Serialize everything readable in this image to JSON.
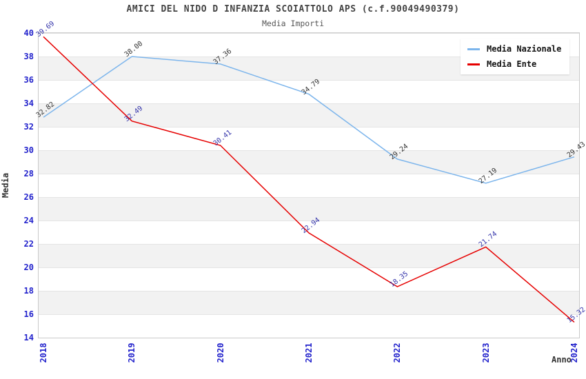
{
  "header": {
    "title": "AMICI DEL NIDO D INFANZIA SCOIATTOLO APS (c.f.90049490379)",
    "subtitle": "Media Importi"
  },
  "chart_data": {
    "type": "line",
    "x": [
      2018,
      2019,
      2020,
      2021,
      2022,
      2023,
      2024
    ],
    "series": [
      {
        "name": "Media Nazionale",
        "color": "#7cb5ec",
        "label_color": "#333333",
        "values": [
          32.82,
          38.0,
          37.36,
          34.79,
          29.24,
          27.19,
          29.43
        ]
      },
      {
        "name": "Media Ente",
        "color": "#e60000",
        "label_color": "#3333aa",
        "values": [
          39.69,
          32.49,
          30.41,
          22.94,
          18.35,
          21.74,
          15.32
        ]
      }
    ],
    "xlabel": "Anno",
    "ylabel": "Media",
    "ylim": [
      14,
      40
    ],
    "ytick_step": 2,
    "tick_label_color": "#2222cc",
    "grid": "horizontal-bands",
    "legend_position": "top-right",
    "point_labels": "visible"
  }
}
